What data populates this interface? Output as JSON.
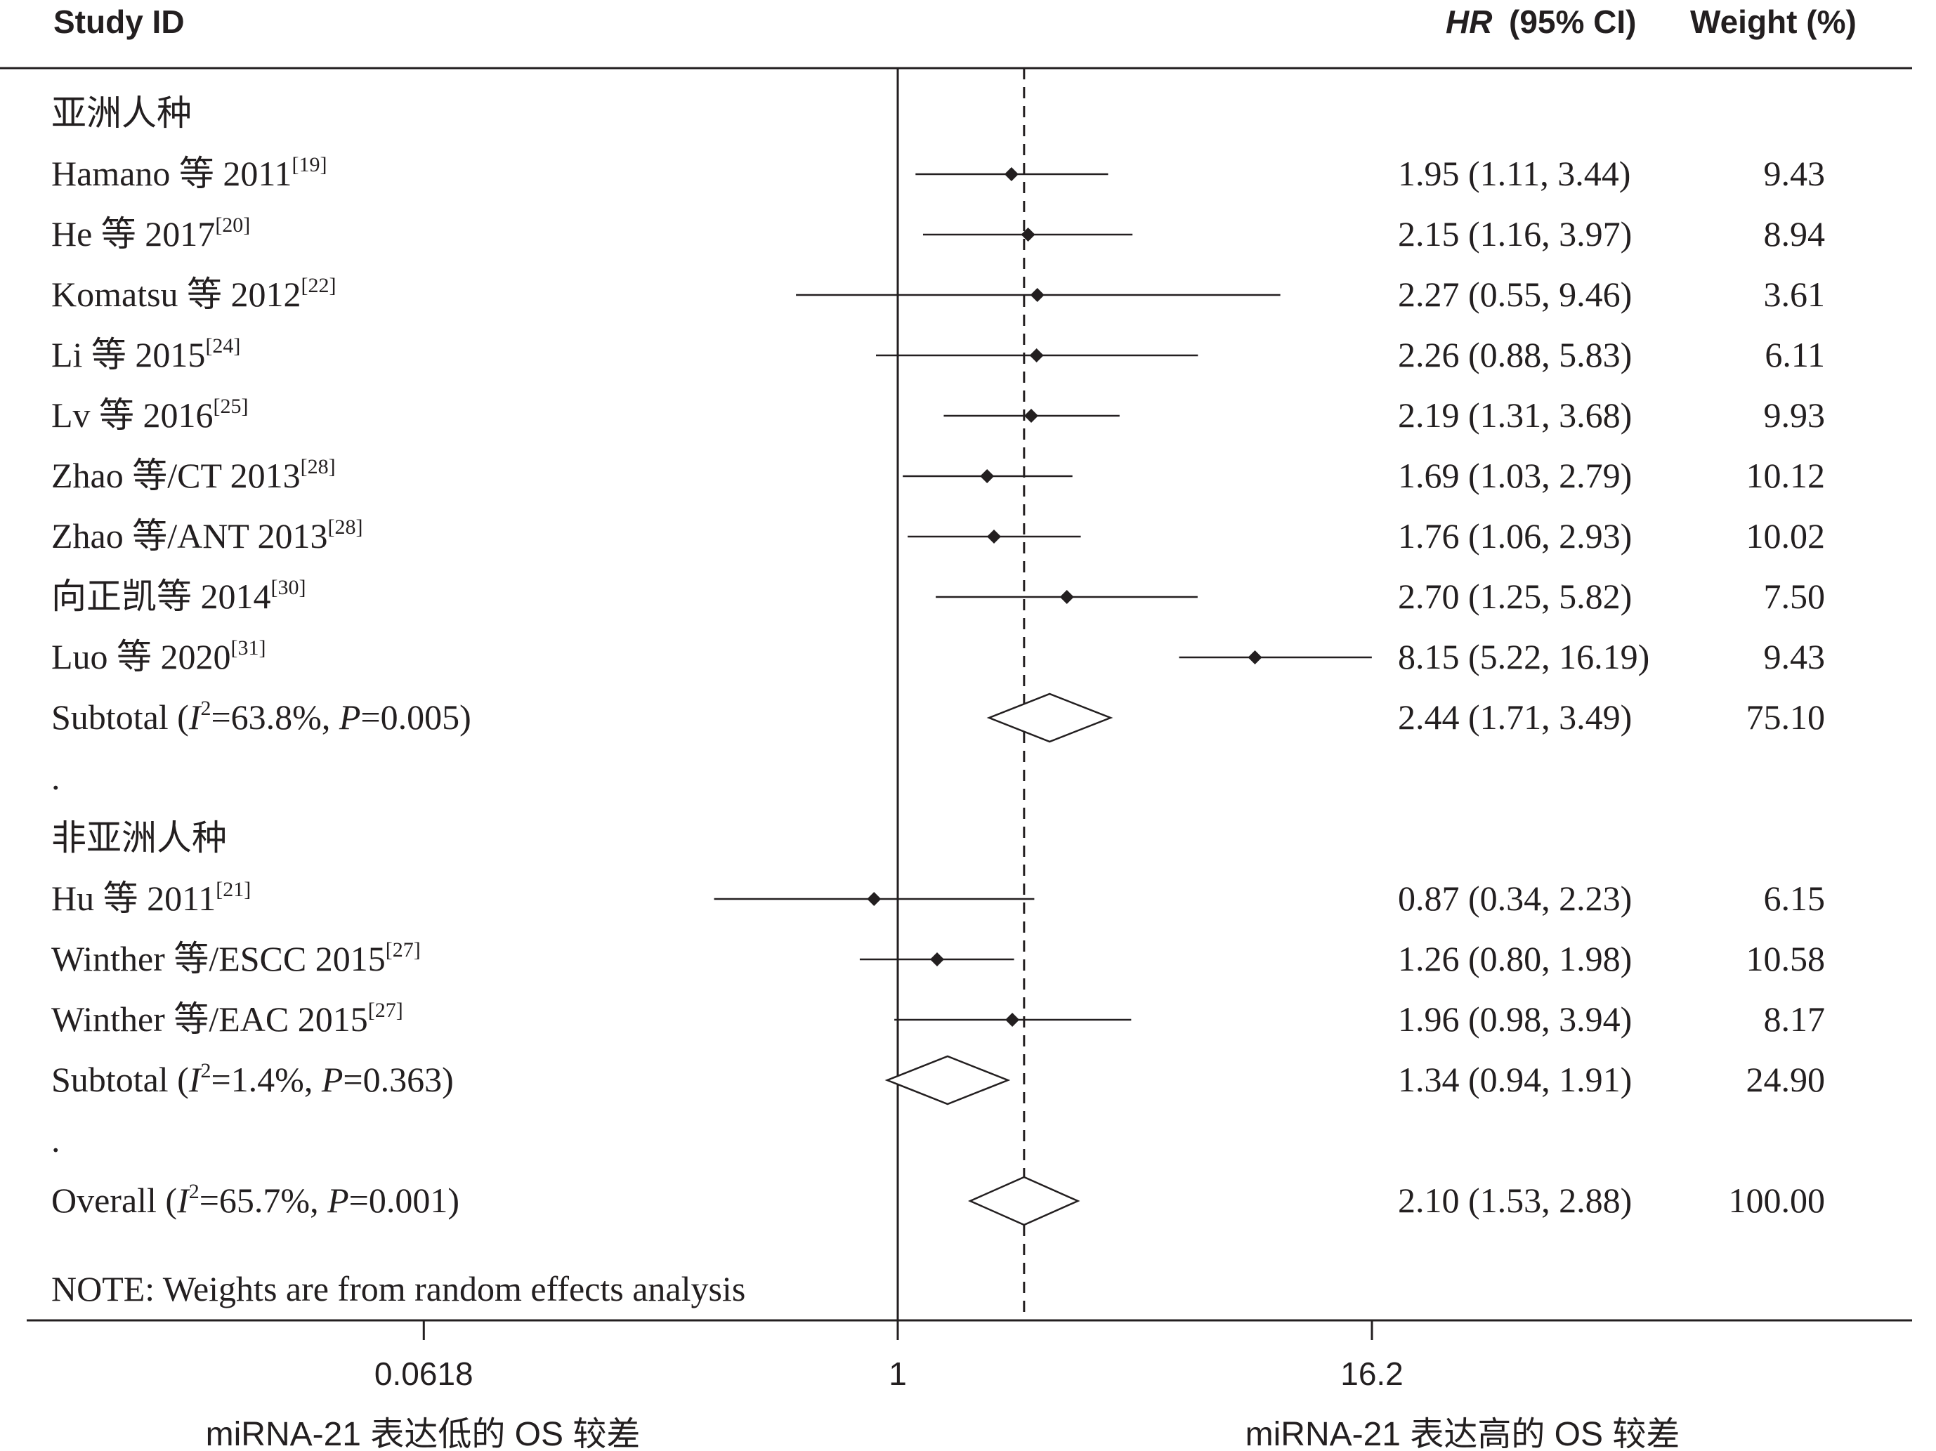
{
  "chart_data": {
    "type": "forest",
    "header": {
      "study_id": "Study ID",
      "hr_label": "HR",
      "ci_label": "(95% CI)",
      "weight_label": "Weight (%)"
    },
    "x_axis": {
      "scale": "log",
      "ticks": [
        {
          "value": 0.0618,
          "label": "0.0618"
        },
        {
          "value": 1,
          "label": "1"
        },
        {
          "value": 16.2,
          "label": "16.2"
        }
      ],
      "left_label": "miRNA-21 表达低的 OS 较差",
      "right_label": "miRNA-21 表达高的 OS 较差"
    },
    "overall_effect": 2.1,
    "rows": [
      {
        "kind": "group",
        "label": "亚洲人种"
      },
      {
        "kind": "study",
        "label": "Hamano 等 2011",
        "ref": "[19]",
        "hr": 1.95,
        "lo": 1.11,
        "hi": 3.44,
        "hr_ci": "1.95 (1.11, 3.44)",
        "weight": "9.43"
      },
      {
        "kind": "study",
        "label": "He 等 2017",
        "ref": "[20]",
        "hr": 2.15,
        "lo": 1.16,
        "hi": 3.97,
        "hr_ci": "2.15 (1.16, 3.97)",
        "weight": "8.94"
      },
      {
        "kind": "study",
        "label": "Komatsu 等 2012",
        "ref": "[22]",
        "hr": 2.27,
        "lo": 0.55,
        "hi": 9.46,
        "hr_ci": "2.27 (0.55, 9.46)",
        "weight": "3.61"
      },
      {
        "kind": "study",
        "label": "Li 等 2015",
        "ref": "[24]",
        "hr": 2.26,
        "lo": 0.88,
        "hi": 5.83,
        "hr_ci": "2.26 (0.88, 5.83)",
        "weight": "6.11"
      },
      {
        "kind": "study",
        "label": "Lv 等 2016",
        "ref": "[25]",
        "hr": 2.19,
        "lo": 1.31,
        "hi": 3.68,
        "hr_ci": "2.19 (1.31, 3.68)",
        "weight": "9.93"
      },
      {
        "kind": "study",
        "label": "Zhao 等/CT 2013",
        "ref": "[28]",
        "hr": 1.69,
        "lo": 1.03,
        "hi": 2.79,
        "hr_ci": "1.69 (1.03, 2.79)",
        "weight": "10.12"
      },
      {
        "kind": "study",
        "label": "Zhao 等/ANT 2013",
        "ref": "[28]",
        "hr": 1.76,
        "lo": 1.06,
        "hi": 2.93,
        "hr_ci": "1.76 (1.06, 2.93)",
        "weight": "10.02"
      },
      {
        "kind": "study",
        "label": "向正凯等 2014",
        "ref": "[30]",
        "hr": 2.7,
        "lo": 1.25,
        "hi": 5.82,
        "hr_ci": "2.70 (1.25, 5.82)",
        "weight": "7.50"
      },
      {
        "kind": "study",
        "label": "Luo 等 2020",
        "ref": "[31]",
        "hr": 8.15,
        "lo": 5.22,
        "hi": 16.19,
        "hr_ci": "8.15 (5.22, 16.19)",
        "weight": "9.43"
      },
      {
        "kind": "subtotal",
        "label_pre": "Subtotal (",
        "label_i": "I",
        "label_mid": "=63.8%, ",
        "label_p": "P",
        "label_post": "=0.005)",
        "hr": 2.44,
        "lo": 1.71,
        "hi": 3.49,
        "hr_ci": "2.44 (1.71, 3.49)",
        "weight": "75.10"
      },
      {
        "kind": "dot",
        "label": "."
      },
      {
        "kind": "group",
        "label": "非亚洲人种"
      },
      {
        "kind": "study",
        "label": "Hu 等 2011",
        "ref": "[21]",
        "hr": 0.87,
        "lo": 0.34,
        "hi": 2.23,
        "hr_ci": "0.87 (0.34, 2.23)",
        "weight": "6.15"
      },
      {
        "kind": "study",
        "label": "Winther 等/ESCC 2015",
        "ref": "[27]",
        "hr": 1.26,
        "lo": 0.8,
        "hi": 1.98,
        "hr_ci": "1.26 (0.80, 1.98)",
        "weight": "10.58"
      },
      {
        "kind": "study",
        "label": "Winther 等/EAC 2015",
        "ref": "[27]",
        "hr": 1.96,
        "lo": 0.98,
        "hi": 3.94,
        "hr_ci": "1.96 (0.98, 3.94)",
        "weight": "8.17"
      },
      {
        "kind": "subtotal",
        "label_pre": "Subtotal (",
        "label_i": "I",
        "label_mid": "=1.4%, ",
        "label_p": "P",
        "label_post": "=0.363)",
        "hr": 1.34,
        "lo": 0.94,
        "hi": 1.91,
        "hr_ci": "1.34 (0.94, 1.91)",
        "weight": "24.90"
      },
      {
        "kind": "dot",
        "label": "."
      },
      {
        "kind": "subtotal",
        "label_pre": "Overall (",
        "label_i": "I",
        "label_mid": "=65.7%, ",
        "label_p": "P",
        "label_post": "=0.001)",
        "hr": 2.1,
        "lo": 1.53,
        "hi": 2.88,
        "hr_ci": "2.10 (1.53, 2.88)",
        "weight": "100.00"
      }
    ],
    "note": "NOTE: Weights are from random effects analysis"
  }
}
